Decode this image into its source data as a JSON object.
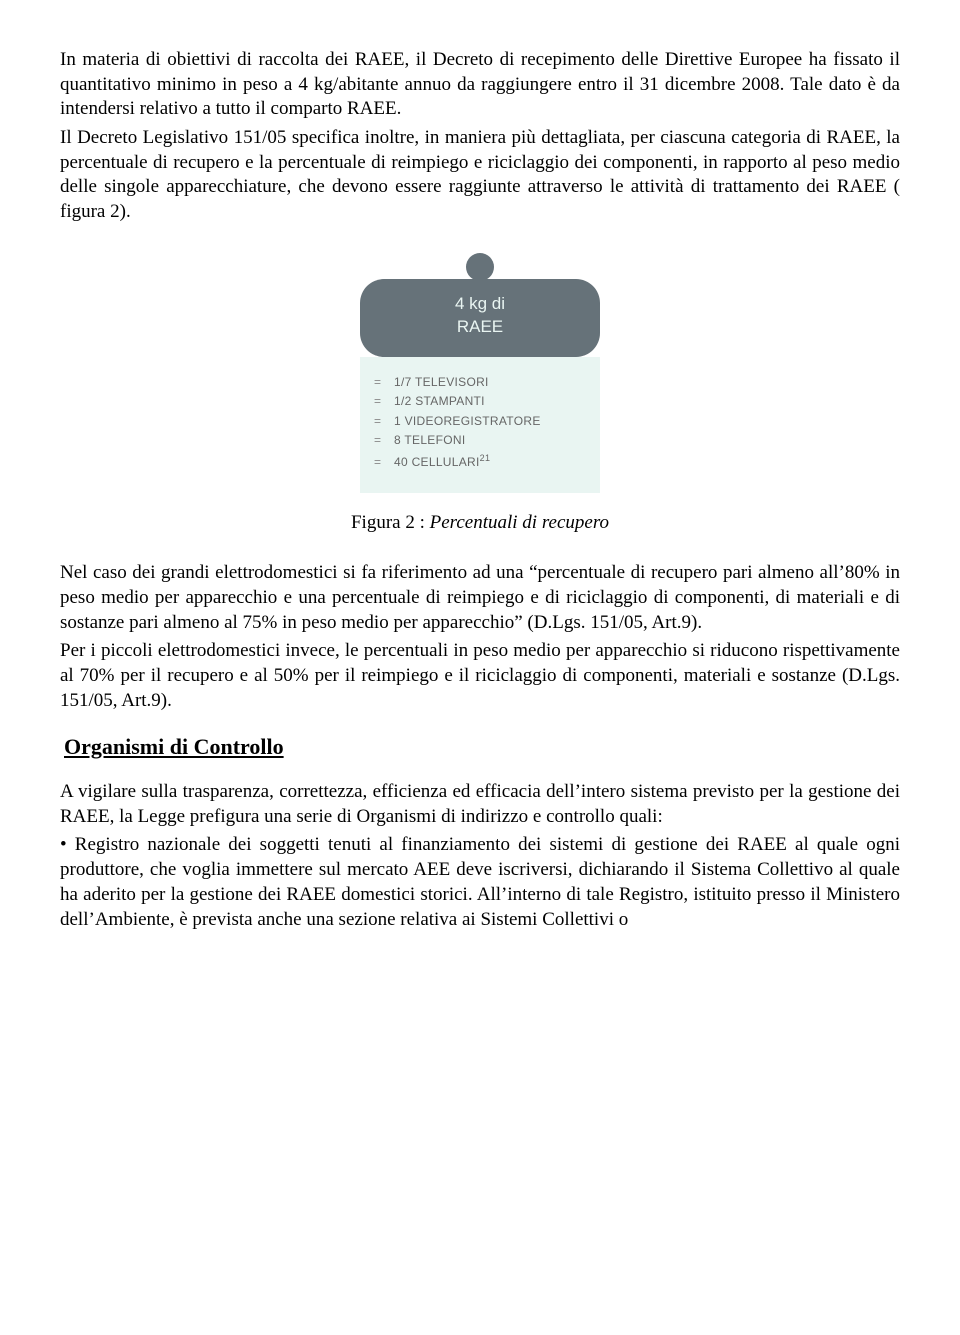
{
  "para1": "In materia di obiettivi di raccolta dei RAEE, il Decreto di recepimento delle Direttive Europee ha fissato il quantitativo minimo in peso a 4 kg/abitante annuo da raggiungere entro il 31 dicembre 2008. Tale dato è da intendersi relativo a tutto il comparto RAEE.",
  "para2": "Il Decreto Legislativo 151/05 specifica inoltre, in maniera più dettagliata, per ciascuna categoria di RAEE, la percentuale di recupero e la percentuale di reimpiego e riciclaggio dei componenti, in rapporto al peso medio delle singole apparecchiature, che devono essere raggiunte attraverso le attività di trattamento dei RAEE ( figura 2).",
  "fig": {
    "head1": "4 kg di",
    "head2": "RAEE",
    "items": [
      "1/7 TELEVISORI",
      "1/2 STAMPANTI",
      "1 VIDEOREGISTRATORE",
      "8 TELEFONI",
      "40 CELLULARI"
    ],
    "lastSup": "21"
  },
  "captionPrefix": "Figura 2 : ",
  "captionItalic": "Percentuali di recupero",
  "para3": "Nel caso dei grandi elettrodomestici si fa riferimento ad una “percentuale di recupero pari almeno all’80% in peso medio per apparecchio e una percentuale di reimpiego e di riciclaggio di componenti, di materiali e di sostanze pari almeno al 75% in peso medio per apparecchio” (D.Lgs. 151/05, Art.9).",
  "para4": "Per i piccoli elettrodomestici invece, le percentuali in peso medio per apparecchio si riducono rispettivamente al 70% per il recupero e al 50% per il reimpiego e il riciclaggio di componenti, materiali e sostanze (D.Lgs. 151/05, Art.9).",
  "heading": "Organismi di Controllo",
  "para5": "A vigilare sulla trasparenza, correttezza, efficienza ed efficacia dell’intero sistema previsto per la gestione dei RAEE, la Legge prefigura una serie di Organismi di indirizzo e controllo quali:",
  "bullet1": "• Registro nazionale dei soggetti tenuti al finanziamento dei sistemi di gestione dei RAEE al quale ogni produttore, che voglia immettere sul mercato AEE deve iscriversi, dichiarando il Sistema Collettivo al quale ha aderito per la gestione dei RAEE domestici storici. All’interno di tale Registro, istituito presso il Ministero dell’Ambiente, è prevista anche una sezione relativa ai  Sistemi Collettivi o"
}
